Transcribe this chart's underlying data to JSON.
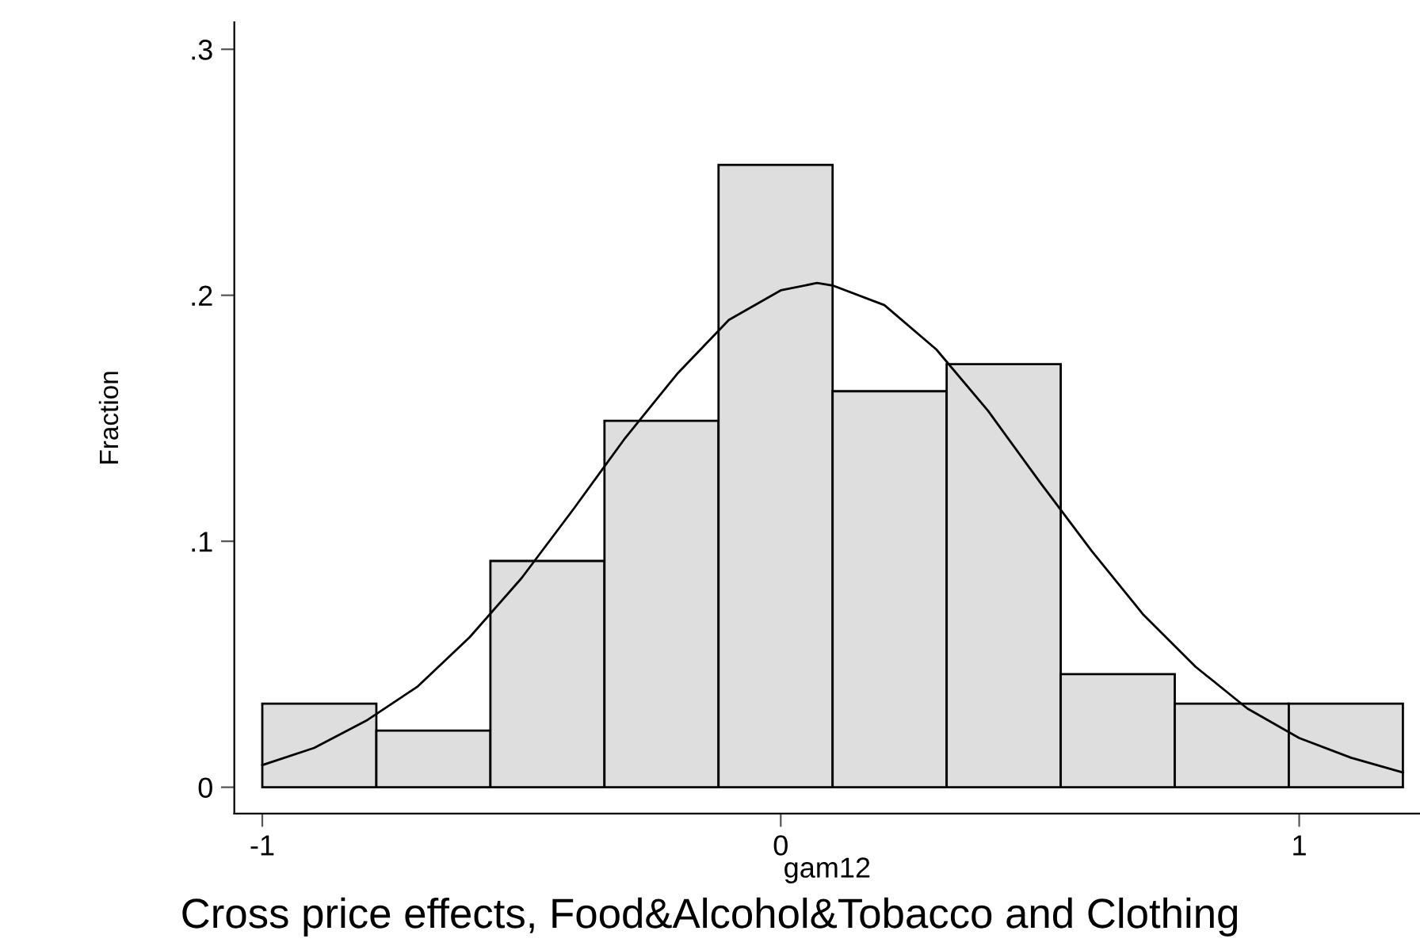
{
  "chart_data": {
    "type": "histogram",
    "title": "Cross price effects, Food&Alcohol&Tobacco and Clothing",
    "xlabel": "gam12",
    "ylabel": "Fraction",
    "bins": [
      -1,
      -0.78,
      -0.56,
      -0.34,
      -0.12,
      0.1,
      0.32,
      0.54,
      0.76,
      0.98,
      1.2
    ],
    "values": [
      0.034,
      0.023,
      0.092,
      0.149,
      0.253,
      0.161,
      0.172,
      0.046,
      0.034,
      0.034
    ],
    "color": "#dedede",
    "series": [
      {
        "type": "line",
        "color": "#000000",
        "x": [
          -1,
          -0.9,
          -0.8,
          -0.7,
          -0.6,
          -0.5,
          -0.4,
          -0.3,
          -0.2,
          -0.1,
          0,
          0.07,
          0.1,
          0.2,
          0.3,
          0.4,
          0.5,
          0.6,
          0.7,
          0.8,
          0.9,
          1.0,
          1.1,
          1.2
        ],
        "values": [
          0.009,
          0.016,
          0.027,
          0.041,
          0.061,
          0.085,
          0.113,
          0.142,
          0.168,
          0.19,
          0.202,
          0.205,
          0.204,
          0.196,
          0.178,
          0.153,
          0.124,
          0.096,
          0.07,
          0.049,
          0.032,
          0.02,
          0.012,
          0.006
        ]
      }
    ],
    "xlim": [
      -1.054,
      1.233
    ],
    "ylim": [
      -0.0107,
      0.311
    ],
    "xticks": [
      {
        "value": -1,
        "label": "-1"
      },
      0,
      1
    ],
    "yticks": [
      0,
      {
        "value": 0.1,
        "label": ".1"
      },
      {
        "value": 0.2,
        "label": ".2"
      },
      {
        "value": 0.3,
        "label": ".3"
      }
    ],
    "grid": false,
    "legend": false
  }
}
